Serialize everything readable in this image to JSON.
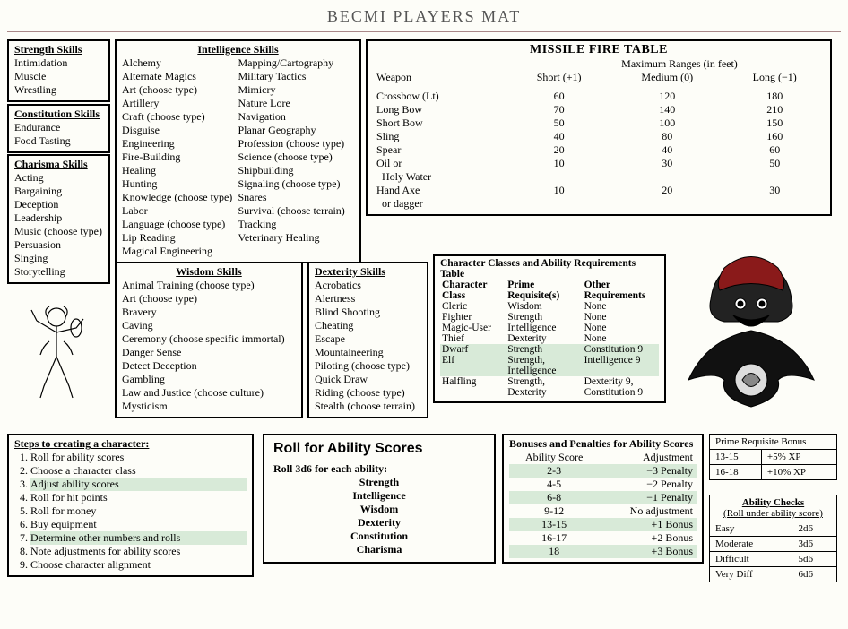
{
  "title": "BECMI PLAYERS MAT",
  "strength": {
    "header": "Strength Skills",
    "items": [
      "Intimidation",
      "Muscle",
      "Wrestling"
    ]
  },
  "constitution": {
    "header": "Constitution Skills",
    "items": [
      "Endurance",
      "Food Tasting"
    ]
  },
  "charisma": {
    "header": "Charisma Skills",
    "items": [
      "Acting",
      "Bargaining",
      "Deception",
      "Leadership",
      "Music (choose type)",
      "Persuasion",
      "Singing",
      "Storytelling"
    ]
  },
  "intelligence": {
    "header": "Intelligence Skills",
    "left": [
      "Alchemy",
      "Alternate Magics",
      "Art (choose type)",
      "Artillery",
      "Craft (choose type)",
      "Disguise",
      "Engineering",
      "Fire-Building",
      "Healing",
      "Hunting",
      "Knowledge (choose type)",
      "Labor",
      "Language (choose type)",
      "Lip Reading",
      "Magical Engineering"
    ],
    "right": [
      "Mapping/Cartography",
      "Military Tactics",
      "Mimicry",
      "Nature Lore",
      "Navigation",
      "Planar Geography",
      "Profession (choose type)",
      "Science (choose type)",
      "Shipbuilding",
      "Signaling (choose type)",
      "Snares",
      "Survival (choose terrain)",
      "Tracking",
      "Veterinary Healing"
    ]
  },
  "wisdom": {
    "header": "Wisdom Skills",
    "items": [
      "Animal Training (choose type)",
      "Art (choose type)",
      "Bravery",
      "Caving",
      "Ceremony (choose specific immortal)",
      "Danger Sense",
      "Detect Deception",
      "Gambling",
      "Law and Justice (choose culture)",
      "Mysticism"
    ]
  },
  "dexterity": {
    "header": "Dexterity Skills",
    "items": [
      "Acrobatics",
      "Alertness",
      "Blind Shooting",
      "Cheating",
      "Escape",
      "Mountaineering",
      "Piloting (choose type)",
      "Quick Draw",
      "Riding (choose type)",
      "Stealth (choose terrain)"
    ]
  },
  "missile": {
    "title": "MISSILE FIRE TABLE",
    "subtitle": "Maximum Ranges (in feet)",
    "col_weapon": "Weapon",
    "cols": [
      "Short (+1)",
      "Medium (0)",
      "Long (−1)"
    ],
    "rows": [
      {
        "w": "Crossbow (Lt)",
        "v": [
          "60",
          "120",
          "180"
        ]
      },
      {
        "w": "Long Bow",
        "v": [
          "70",
          "140",
          "210"
        ]
      },
      {
        "w": "Short Bow",
        "v": [
          "50",
          "100",
          "150"
        ]
      },
      {
        "w": "Sling",
        "v": [
          "40",
          "80",
          "160"
        ]
      },
      {
        "w": "Spear",
        "v": [
          "20",
          "40",
          "60"
        ]
      },
      {
        "w": "Oil or",
        "v": [
          "10",
          "30",
          "50"
        ]
      },
      {
        "w": "  Holy Water",
        "v": [
          "",
          "",
          ""
        ]
      },
      {
        "w": "Hand Axe",
        "v": [
          "10",
          "20",
          "30"
        ]
      },
      {
        "w": "  or dagger",
        "v": [
          "",
          "",
          ""
        ]
      }
    ]
  },
  "classreq": {
    "title": "Character Classes and Ability Requirements",
    "subtitle": "Table",
    "h1": "Character",
    "h1b": "Class",
    "h2": "Prime",
    "h2b": "Requisite(s)",
    "h3": "Other",
    "h3b": "Requirements",
    "rows": [
      {
        "c": "Cleric",
        "p": "Wisdom",
        "o": "None",
        "shade": false
      },
      {
        "c": "Fighter",
        "p": "Strength",
        "o": "None",
        "shade": false
      },
      {
        "c": "Magic-User",
        "p": "Intelligence",
        "o": "None",
        "shade": false
      },
      {
        "c": "Thief",
        "p": "Dexterity",
        "o": "None",
        "shade": false
      },
      {
        "c": "Dwarf",
        "p": "Strength",
        "o": "Constitution 9",
        "shade": true
      },
      {
        "c": "Elf",
        "p": "Strength, Intelligence",
        "o": "Intelligence 9",
        "shade": true
      },
      {
        "c": "Halfling",
        "p": "Strength, Dexterity",
        "o": "Dexterity 9, Constitution 9",
        "shade": false
      }
    ]
  },
  "steps": {
    "title": "Steps to creating a character:",
    "items": [
      {
        "t": "Roll for ability scores",
        "sh": false
      },
      {
        "t": "Choose a character class",
        "sh": false
      },
      {
        "t": "Adjust ability scores",
        "sh": true
      },
      {
        "t": "Roll for hit points",
        "sh": false
      },
      {
        "t": "Roll for money",
        "sh": false
      },
      {
        "t": "Buy equipment",
        "sh": false
      },
      {
        "t": "Determine other numbers and rolls",
        "sh": true
      },
      {
        "t": "Note adjustments for ability scores",
        "sh": false
      },
      {
        "t": "Choose character alignment",
        "sh": false
      }
    ]
  },
  "roll": {
    "title": "Roll for Ability Scores",
    "lead": "Roll 3d6 for each ability:",
    "abilities": [
      "Strength",
      "Intelligence",
      "Wisdom",
      "Dexterity",
      "Constitution",
      "Charisma"
    ]
  },
  "bonus": {
    "title": "Bonuses and Penalties for Ability Scores",
    "h1": "Ability Score",
    "h2": "Adjustment",
    "rows": [
      {
        "s": "2-3",
        "a": "−3 Penalty",
        "sh": true
      },
      {
        "s": "4-5",
        "a": "−2 Penalty",
        "sh": false
      },
      {
        "s": "6-8",
        "a": "−1 Penalty",
        "sh": true
      },
      {
        "s": "9-12",
        "a": "No adjustment",
        "sh": false
      },
      {
        "s": "13-15",
        "a": "+1 Bonus",
        "sh": true
      },
      {
        "s": "16-17",
        "a": "+2 Bonus",
        "sh": false
      },
      {
        "s": "18",
        "a": "+3 Bonus",
        "sh": true
      }
    ]
  },
  "prime": {
    "title": "Prime Requisite Bonus",
    "rows": [
      {
        "r": "13-15",
        "b": "+5% XP"
      },
      {
        "r": "16-18",
        "b": "+10% XP"
      }
    ]
  },
  "checks": {
    "title": "Ability Checks",
    "sub": "(Roll under ability score)",
    "rows": [
      {
        "d": "Easy",
        "r": "2d6"
      },
      {
        "d": "Moderate",
        "r": "3d6"
      },
      {
        "d": "Difficult",
        "r": "5d6"
      },
      {
        "d": "Very Diff",
        "r": "6d6"
      }
    ]
  }
}
